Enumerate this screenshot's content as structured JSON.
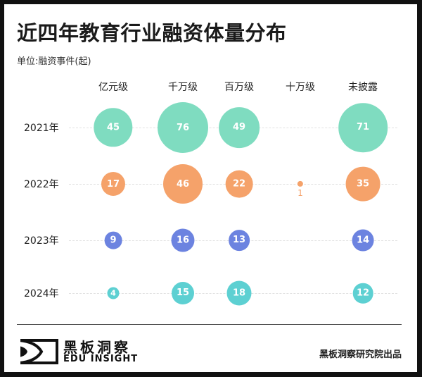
{
  "title": "近四年教育行业融资体量分布",
  "unit": "单位:融资事件(起)",
  "columns": [
    "亿元级",
    "千万级",
    "百万级",
    "十万级",
    "未披露"
  ],
  "rows": [
    {
      "label": "2021年",
      "color": "#7fdcc0",
      "values": [
        "45",
        "76",
        "49",
        "",
        "71"
      ]
    },
    {
      "label": "2022年",
      "color": "#f5a26a",
      "values": [
        "17",
        "46",
        "22",
        "1",
        "35"
      ]
    },
    {
      "label": "2023年",
      "color": "#6c83e0",
      "values": [
        "9",
        "16",
        "13",
        "",
        "14"
      ]
    },
    {
      "label": "2024年",
      "color": "#5dd0d2",
      "values": [
        "4",
        "15",
        "18",
        "",
        "12"
      ]
    }
  ],
  "footer": {
    "logo_cn": "黑板洞察",
    "logo_en": "EDU INSIGHT",
    "credit": "黑板洞察研究院出品"
  },
  "chart_data": {
    "type": "scatter",
    "subtype": "bubble-matrix",
    "title": "近四年教育行业融资体量分布",
    "subtitle": "单位:融资事件(起)",
    "categories": [
      "亿元级",
      "千万级",
      "百万级",
      "十万级",
      "未披露"
    ],
    "series": [
      {
        "name": "2021年",
        "values": [
          45,
          76,
          49,
          null,
          71
        ],
        "color": "#7fdcc0"
      },
      {
        "name": "2022年",
        "values": [
          17,
          46,
          22,
          1,
          35
        ],
        "color": "#f5a26a"
      },
      {
        "name": "2023年",
        "values": [
          9,
          16,
          13,
          null,
          14
        ],
        "color": "#6c83e0"
      },
      {
        "name": "2024年",
        "values": [
          4,
          15,
          18,
          null,
          12
        ],
        "color": "#5dd0d2"
      }
    ],
    "xlabel": "",
    "ylabel": "",
    "grid": "dashed horizontal per row",
    "legend": "none (row labels at left)"
  }
}
